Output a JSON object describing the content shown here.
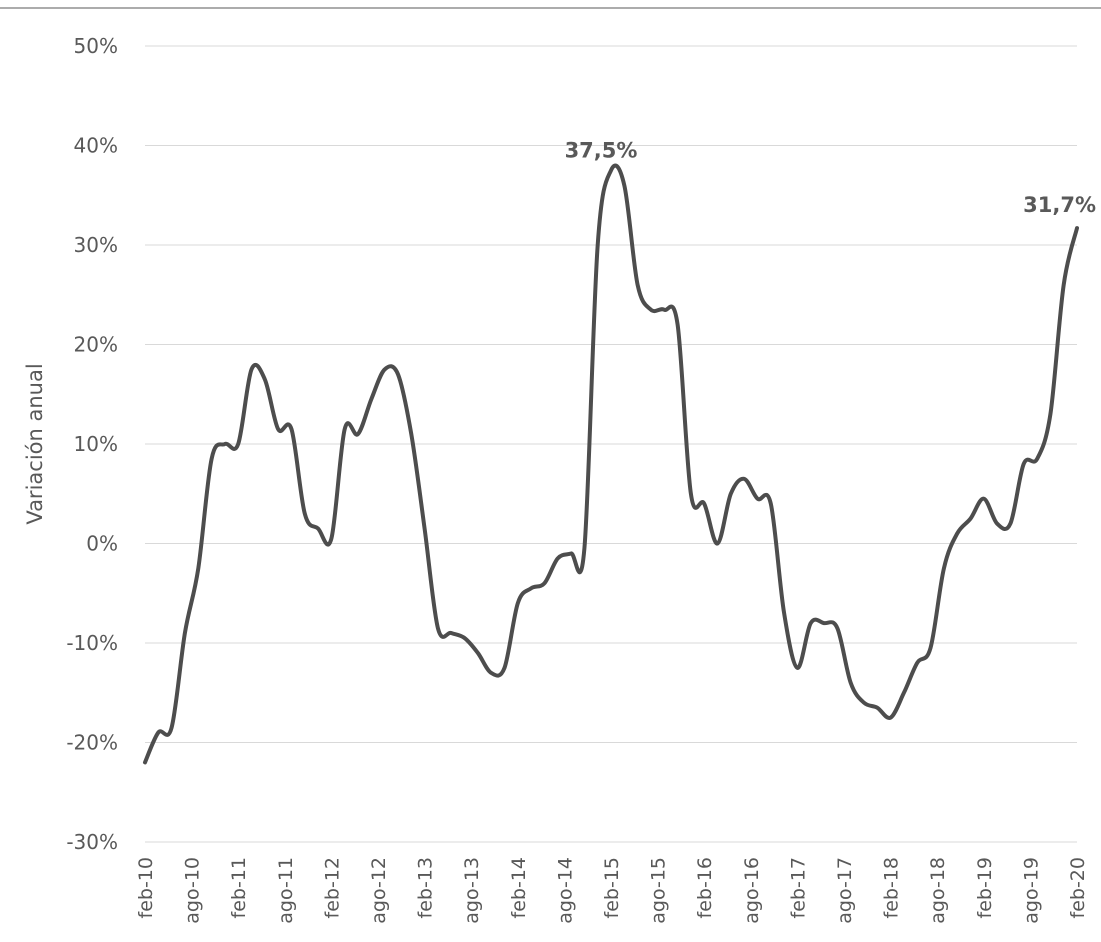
{
  "chart_data": {
    "type": "line",
    "title": "",
    "ylabel": "Variación anual",
    "xlabel": "",
    "ylim": [
      -30,
      50
    ],
    "y_ticks": [
      50,
      40,
      30,
      20,
      10,
      0,
      -10,
      -20,
      -30
    ],
    "y_tick_labels": [
      "50%",
      "40%",
      "30%",
      "20%",
      "10%",
      "0%",
      "-10%",
      "-20%",
      "-30%"
    ],
    "x_tick_labels": [
      "feb-10",
      "ago-10",
      "feb-11",
      "ago-11",
      "feb-12",
      "ago-12",
      "feb-13",
      "ago-13",
      "feb-14",
      "ago-14",
      "feb-15",
      "ago-15",
      "feb-16",
      "ago-16",
      "feb-17",
      "ago-17",
      "feb-18",
      "ago-18",
      "feb-19",
      "ago-19",
      "feb-20"
    ],
    "grid": true,
    "legend": "none",
    "line_color": "#4d4d4d",
    "series": [
      {
        "values": [
          -22,
          -19,
          -18.5,
          -9,
          -2.5,
          8.5,
          10,
          10,
          17.5,
          16.5,
          11.5,
          11.5,
          3,
          1.5,
          0.5,
          11.5,
          11,
          14.5,
          17.5,
          17,
          11,
          1.5,
          -8.5,
          -9,
          -9.5,
          -11,
          -13,
          -12.5,
          -6,
          -4.5,
          -4,
          -1.5,
          -1,
          -0.5,
          30,
          37.5,
          36,
          26,
          23.5,
          23.5,
          22,
          5,
          4,
          0,
          5,
          6.5,
          4.5,
          4,
          -7,
          -12.5,
          -8,
          -8,
          -8.5,
          -14,
          -16,
          -16.5,
          -17.5,
          -15,
          -12,
          -10.5,
          -2.5,
          1,
          2.5,
          4.5,
          2,
          2,
          8,
          8.5,
          13,
          26,
          31.7
        ]
      }
    ],
    "annotations": [
      {
        "text": "37,5%",
        "x_index": 35,
        "y": 37.5
      },
      {
        "text": "31,7%",
        "x_index": 70,
        "y": 31.7
      }
    ]
  }
}
